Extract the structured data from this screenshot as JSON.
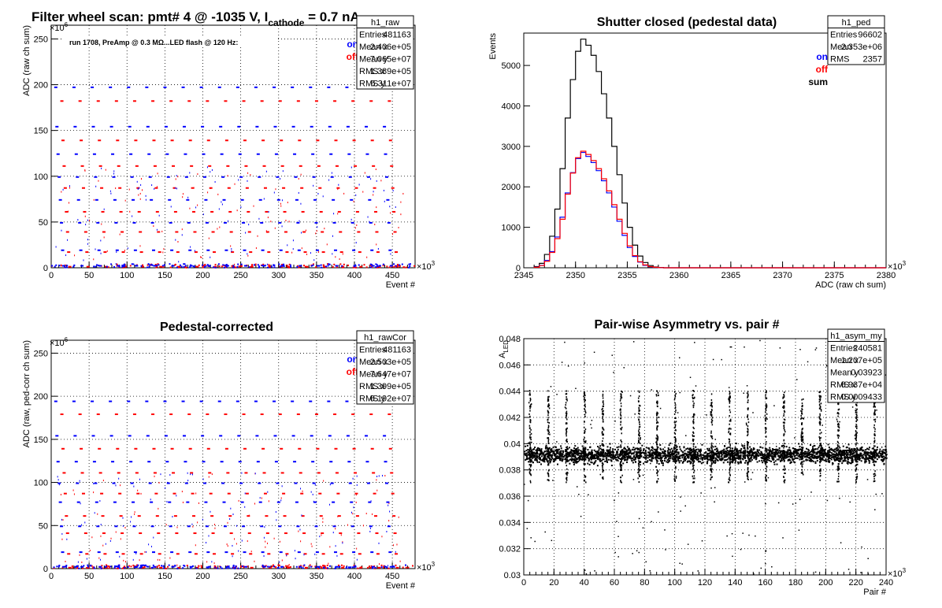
{
  "chart_data": [
    {
      "id": "raw",
      "type": "scatter",
      "title": "Filter wheel scan: pmt#   4 @ -1035 V, I",
      "title_sub": "cathode",
      "title_tail": " = 0.7 nA",
      "annotation": "run 1708, PreAmp @ 0.3 MΩ...LED flash @  120 Hz:",
      "xlabel": "Event #",
      "ylabel": "ADC (raw ch sum)",
      "xlim": [
        0,
        480000
      ],
      "ylim": [
        0,
        265000000
      ],
      "xticks": [
        0,
        50,
        100,
        150,
        200,
        250,
        300,
        350,
        400,
        450
      ],
      "yticks": [
        0,
        50,
        100,
        150,
        200,
        250
      ],
      "x_exponent": "×10",
      "x_exponent_sup": "3",
      "y_exponent": "×10",
      "y_exponent_sup": "6",
      "grid": true,
      "legend": [
        {
          "label": "on",
          "color": "#0000ff"
        },
        {
          "label": "off",
          "color": "#ff0000"
        }
      ],
      "stats": {
        "name": "h1_raw",
        "rows": [
          [
            "Entries",
            "481163"
          ],
          [
            "Mean x",
            "2.406e+05"
          ],
          [
            "Mean y",
            "7.065e+07"
          ],
          [
            "RMS x",
            "1.389e+05"
          ],
          [
            "RMS y",
            "6.311e+07"
          ]
        ]
      },
      "levels_on": [
        198,
        155,
        125,
        100,
        75,
        50,
        20,
        3
      ],
      "levels_off": [
        183,
        140,
        112,
        88,
        62,
        40,
        18,
        2
      ],
      "series": [
        {
          "name": "on",
          "color": "#0000ff"
        },
        {
          "name": "off",
          "color": "#ff0000"
        }
      ]
    },
    {
      "id": "ped",
      "type": "histogram",
      "title": "Shutter closed (pedestal data)",
      "xlabel": "ADC (raw ch sum)",
      "ylabel": "Events",
      "xlim": [
        2345000,
        2380000
      ],
      "ylim": [
        0,
        5800
      ],
      "xticks": [
        2345,
        2350,
        2355,
        2360,
        2365,
        2370,
        2375,
        2380
      ],
      "yticks": [
        0,
        1000,
        2000,
        3000,
        4000,
        5000
      ],
      "x_exponent": "×10",
      "x_exponent_sup": "3",
      "grid": false,
      "legend": [
        {
          "label": "on",
          "color": "#0000ff"
        },
        {
          "label": "off",
          "color": "#ff0000"
        },
        {
          "label": "sum",
          "color": "#000000"
        }
      ],
      "stats": {
        "name": "h1_ped",
        "rows": [
          [
            "Entries",
            "96602"
          ],
          [
            "Mean",
            "2.353e+06"
          ],
          [
            "RMS",
            "2357"
          ]
        ]
      },
      "bin_start": 2346000,
      "bin_width": 500,
      "series": [
        {
          "name": "sum",
          "color": "#000000",
          "values": [
            30,
            110,
            330,
            780,
            1450,
            2450,
            3700,
            4650,
            5350,
            5650,
            5500,
            5250,
            4850,
            4300,
            3700,
            3000,
            2300,
            1600,
            1000,
            560,
            290,
            130,
            55,
            20,
            8
          ]
        },
        {
          "name": "on",
          "color": "#0000ff",
          "values": [
            15,
            60,
            180,
            400,
            760,
            1250,
            1850,
            2350,
            2700,
            2850,
            2750,
            2600,
            2400,
            2150,
            1850,
            1500,
            1150,
            800,
            500,
            280,
            140,
            60,
            25,
            10,
            4
          ]
        },
        {
          "name": "off",
          "color": "#ff0000",
          "values": [
            12,
            55,
            160,
            380,
            720,
            1200,
            1820,
            2340,
            2720,
            2880,
            2800,
            2650,
            2450,
            2200,
            1900,
            1560,
            1200,
            850,
            540,
            300,
            150,
            70,
            28,
            12,
            4
          ]
        }
      ]
    },
    {
      "id": "rawcor",
      "type": "scatter",
      "title": "Pedestal-corrected",
      "xlabel": "Event #",
      "ylabel": "ADC (raw, ped-corr ch sum)",
      "xlim": [
        0,
        480000
      ],
      "ylim": [
        0,
        265000000
      ],
      "xticks": [
        0,
        50,
        100,
        150,
        200,
        250,
        300,
        350,
        400,
        450
      ],
      "yticks": [
        0,
        50,
        100,
        150,
        200,
        250
      ],
      "x_exponent": "×10",
      "x_exponent_sup": "3",
      "y_exponent": "×10",
      "y_exponent_sup": "6",
      "grid": true,
      "legend": [
        {
          "label": "on",
          "color": "#0000ff"
        },
        {
          "label": "off",
          "color": "#ff0000"
        }
      ],
      "stats": {
        "name": "h1_rawCor",
        "rows": [
          [
            "Entries",
            "481163"
          ],
          [
            "Mean x",
            "2.503e+05"
          ],
          [
            "Mean y",
            "7.647e+07"
          ],
          [
            "RMS x",
            "1.399e+05"
          ],
          [
            "RMS y",
            "6.192e+07"
          ]
        ]
      },
      "levels_on": [
        195,
        155,
        125,
        100,
        78,
        50,
        20,
        3
      ],
      "levels_off": [
        180,
        140,
        112,
        88,
        62,
        42,
        18,
        2
      ],
      "series": [
        {
          "name": "on",
          "color": "#0000ff"
        },
        {
          "name": "off",
          "color": "#ff0000"
        }
      ]
    },
    {
      "id": "asym",
      "type": "scatter",
      "title": "Pair-wise Asymmetry vs. pair #",
      "xlabel": "Pair #",
      "ylabel": "A",
      "ylabel_sub": "LED",
      "xlim": [
        0,
        240000
      ],
      "ylim": [
        0.03,
        0.048
      ],
      "xticks": [
        0,
        20,
        40,
        60,
        80,
        100,
        120,
        140,
        160,
        180,
        200,
        220,
        240
      ],
      "yticks": [
        0.03,
        0.032,
        0.034,
        0.036,
        0.038,
        0.04,
        0.042,
        0.044,
        0.046,
        0.048
      ],
      "ytick_labels": [
        "0.03",
        "0.032",
        "0.034",
        "0.036",
        "0.038",
        "0.04",
        "0.042",
        "0.044",
        "0.046",
        "0.048"
      ],
      "x_exponent": "×10",
      "x_exponent_sup": "3",
      "grid": true,
      "stats": {
        "name": "h1_asym_my",
        "rows": [
          [
            "Entries",
            "240581"
          ],
          [
            "Mean x",
            "1.207e+05"
          ],
          [
            "Mean y",
            "0.03923"
          ],
          [
            "RMS x",
            "6.937e+04"
          ],
          [
            "RMS y",
            "0.0009433"
          ]
        ]
      },
      "band_center": 0.0392,
      "band_halfwidth": 0.0008,
      "spike_positions": [
        4,
        16,
        28,
        40,
        52,
        64,
        76,
        88,
        100,
        112,
        124,
        136,
        148,
        160,
        172,
        184,
        196,
        208,
        220,
        232
      ],
      "series": [
        {
          "name": "",
          "color": "#000000"
        }
      ]
    }
  ]
}
